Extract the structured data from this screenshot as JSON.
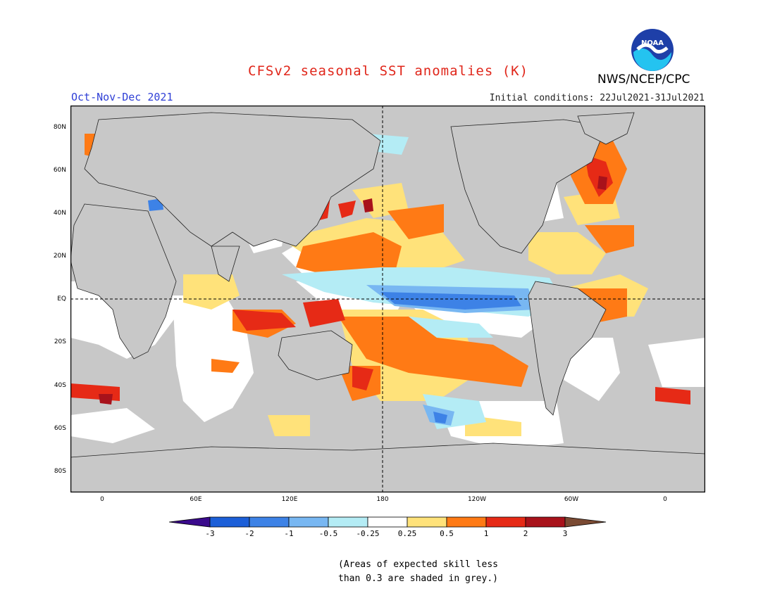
{
  "header": {
    "title": "CFSv2 seasonal SST anomalies (K)",
    "period": "Oct-Nov-Dec 2021",
    "initial_conditions": "Initial conditions: 22Jul2021-31Jul2021",
    "agency": "NWS/NCEP/CPC",
    "logo_text": "NOAA"
  },
  "map": {
    "lat_labels": [
      "80N",
      "60N",
      "40N",
      "20N",
      "EQ",
      "20S",
      "40S",
      "60S",
      "80S"
    ],
    "lon_labels": [
      "0",
      "60E",
      "120E",
      "180",
      "120W",
      "60W",
      "0"
    ],
    "projection": "equirectangular, centered on 180",
    "land_color": "#c8c8c8",
    "low_skill_color": "#c8c8c8"
  },
  "colorbar": {
    "tick_labels": [
      "-3",
      "-2",
      "-1",
      "-0.5",
      "-0.25",
      "0.25",
      "0.5",
      "1",
      "2",
      "3"
    ],
    "colors": [
      "#3a0a8c",
      "#1c5fd8",
      "#3d82e6",
      "#78b7f2",
      "#b4ecf5",
      "#ffffff",
      "#ffe27a",
      "#ff7a15",
      "#e62a16",
      "#a8121b",
      "#7a4a33"
    ]
  },
  "footnote": {
    "line1": "(Areas of expected skill less",
    "line2": "than 0.3 are shaded in grey.)"
  }
}
